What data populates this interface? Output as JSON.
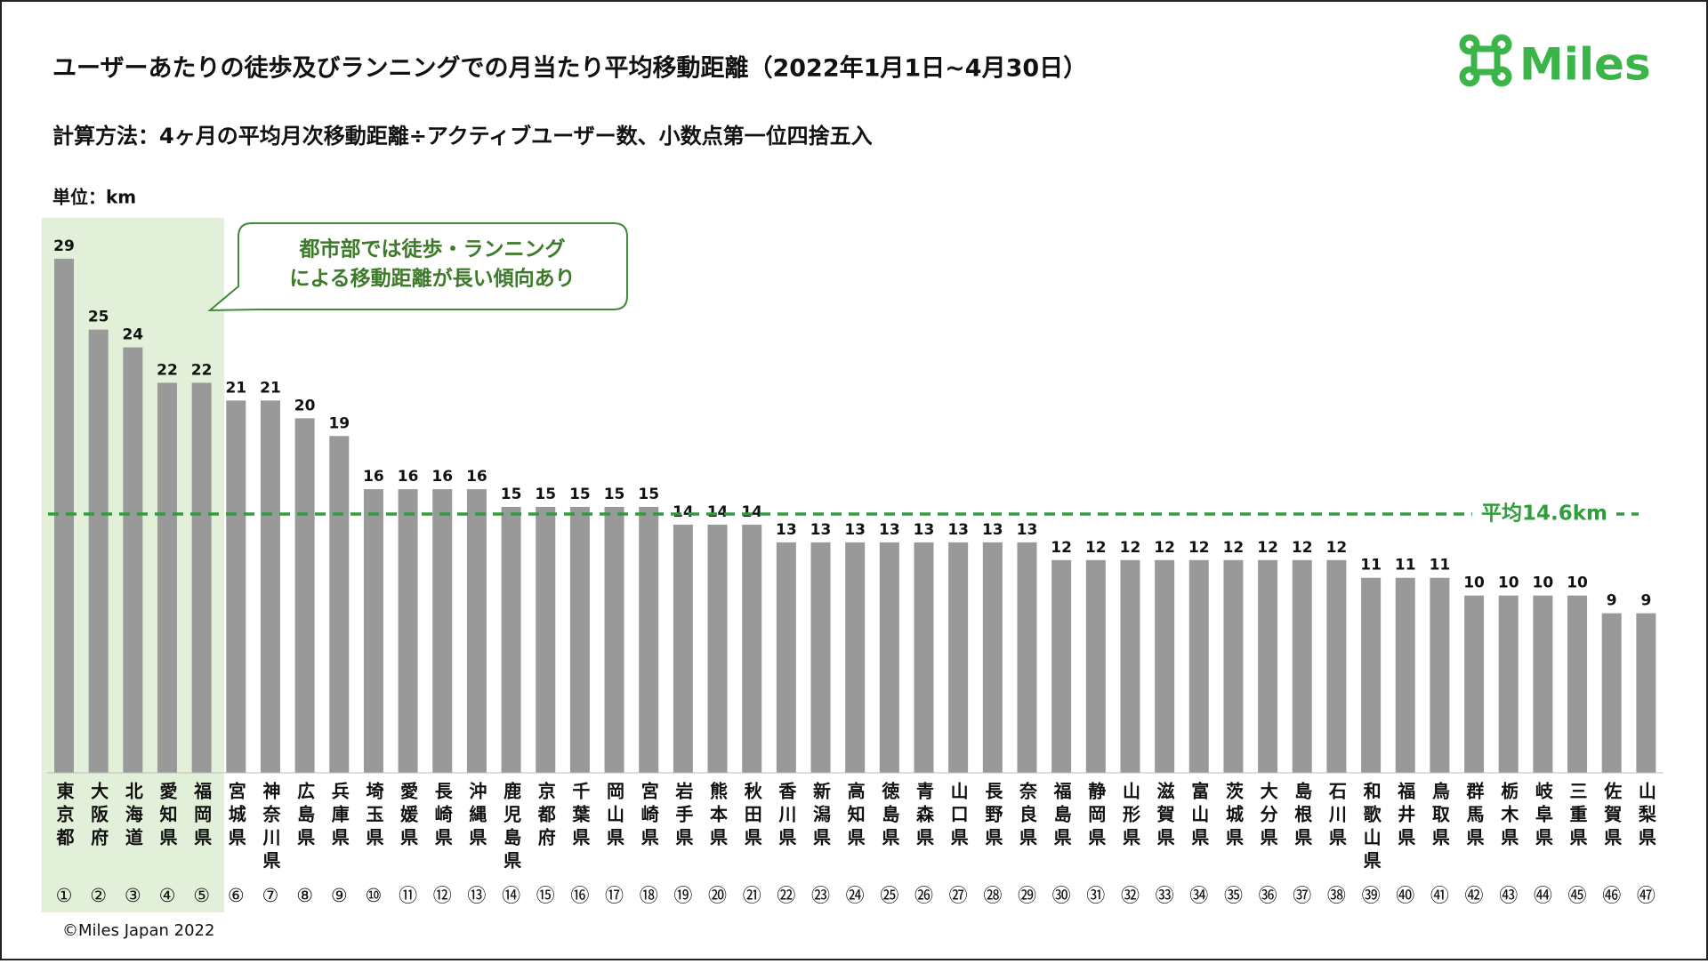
{
  "chart_data": {
    "type": "bar",
    "title": "ユーザーあたりの徒歩及びランニングでの月当たり平均移動距離（2022年1月1日~4月30日）",
    "subtitle": "計算方法：4ヶ月の平均月次移動距離÷アクティブユーザー数、小数点第一位四捨五入",
    "unit_label": "単位：km",
    "logo": "Miles",
    "copyright": "©Miles Japan 2022",
    "annotation": [
      "都市部では徒歩・ランニング",
      "による移動距離が長い傾向あり"
    ],
    "categories": [
      "東京都",
      "大阪府",
      "北海道",
      "愛知県",
      "福岡県",
      "宮城県",
      "神奈川県",
      "広島県",
      "兵庫県",
      "埼玉県",
      "愛媛県",
      "長崎県",
      "沖縄県",
      "鹿児島県",
      "京都府",
      "千葉県",
      "岡山県",
      "宮崎県",
      "岩手県",
      "熊本県",
      "秋田県",
      "香川県",
      "新潟県",
      "高知県",
      "徳島県",
      "青森県",
      "山口県",
      "長野県",
      "奈良県",
      "福島県",
      "静岡県",
      "山形県",
      "滋賀県",
      "富山県",
      "茨城県",
      "大分県",
      "島根県",
      "石川県",
      "和歌山県",
      "福井県",
      "鳥取県",
      "群馬県",
      "栃木県",
      "岐阜県",
      "三重県",
      "佐賀県",
      "山梨県"
    ],
    "ranks": [
      "①",
      "②",
      "③",
      "④",
      "⑤",
      "⑥",
      "⑦",
      "⑧",
      "⑨",
      "⑩",
      "⑪",
      "⑫",
      "⑬",
      "⑭",
      "⑮",
      "⑯",
      "⑰",
      "⑱",
      "⑲",
      "⑳",
      "㉑",
      "㉒",
      "㉓",
      "㉔",
      "㉕",
      "㉖",
      "㉗",
      "㉘",
      "㉙",
      "㉚",
      "㉛",
      "㉜",
      "㉝",
      "㉞",
      "㉟",
      "㊱",
      "㊲",
      "㊳",
      "㊴",
      "㊵",
      "㊶",
      "㊷",
      "㊸",
      "㊹",
      "㊺",
      "㊻",
      "㊼"
    ],
    "values": [
      29,
      25,
      24,
      22,
      22,
      21,
      21,
      20,
      19,
      16,
      16,
      16,
      16,
      15,
      15,
      15,
      15,
      15,
      14,
      14,
      14,
      13,
      13,
      13,
      13,
      13,
      13,
      13,
      13,
      12,
      12,
      12,
      12,
      12,
      12,
      12,
      12,
      12,
      11,
      11,
      11,
      10,
      10,
      10,
      10,
      9,
      9
    ],
    "color": "#999999",
    "highlight_count": 5,
    "highlight_color": "#e2efd9",
    "average": {
      "value": 14.6,
      "label": "平均14.6km"
    },
    "average_color": "#2e9e3c",
    "ylim": [
      0,
      30
    ]
  }
}
